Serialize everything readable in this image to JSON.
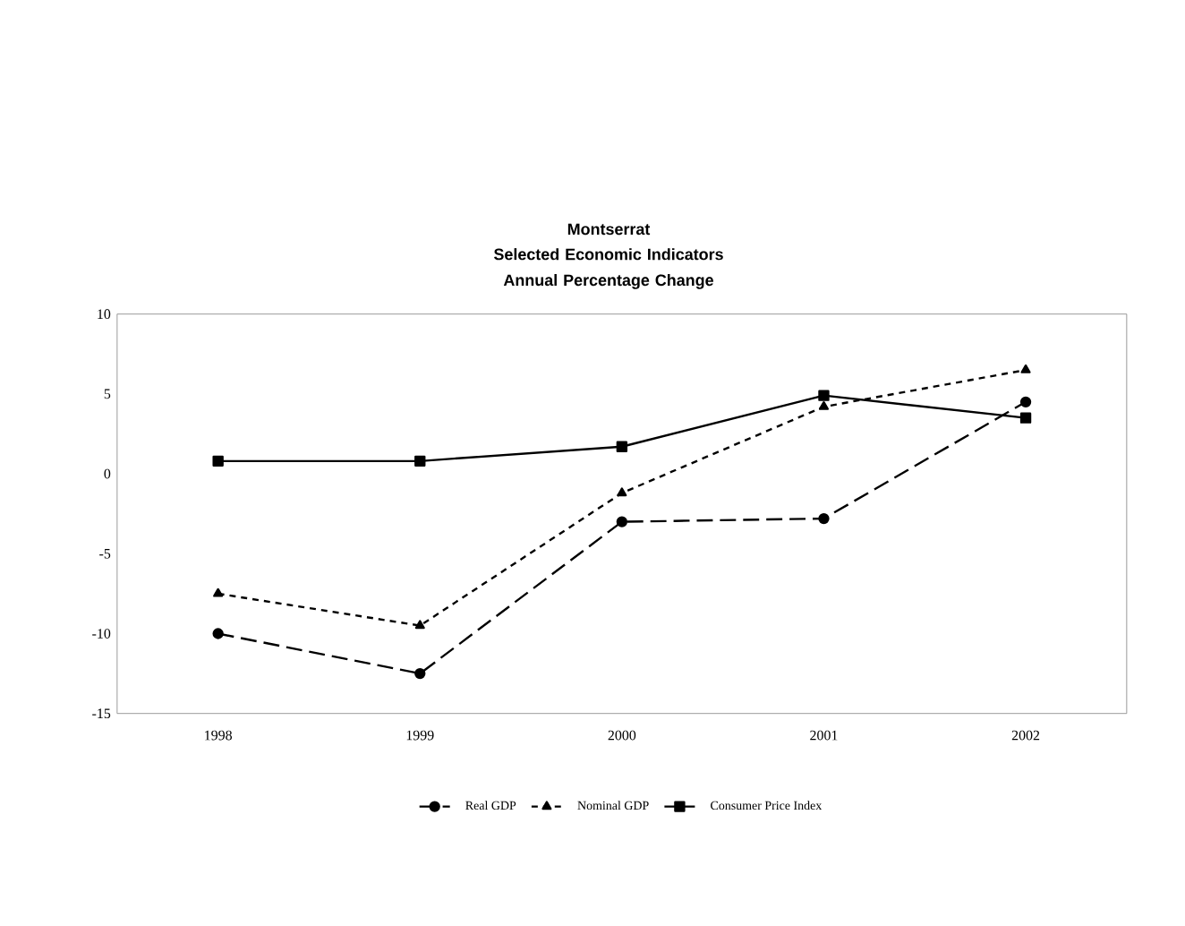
{
  "chart_data": {
    "type": "line",
    "title": "Montserrat",
    "subtitle": "Selected Economic Indicators Annual Percentage Change",
    "categories": [
      "1998",
      "1999",
      "2000",
      "2001",
      "2002"
    ],
    "series": [
      {
        "name": "Real GDP",
        "color": "#000000",
        "marker": "circle",
        "line_style": "dashed",
        "values": [
          -10,
          -12.5,
          -3,
          -2.8,
          4.5
        ]
      },
      {
        "name": "Nominal GDP",
        "color": "#000000",
        "marker": "triangle",
        "line_style": "dotted",
        "values": [
          -7.5,
          -9.5,
          -1.2,
          4.2,
          6.5
        ]
      },
      {
        "name": "Consumer Price Index",
        "color": "#000000",
        "marker": "square",
        "line_style": "solid",
        "values": [
          0.8,
          0.8,
          1.7,
          4.9,
          3.5
        ]
      }
    ],
    "ylim": [
      -15,
      10
    ],
    "yticks": [
      -15,
      -10,
      -5,
      0,
      5,
      10
    ],
    "grid": false,
    "legend": "bottom"
  }
}
